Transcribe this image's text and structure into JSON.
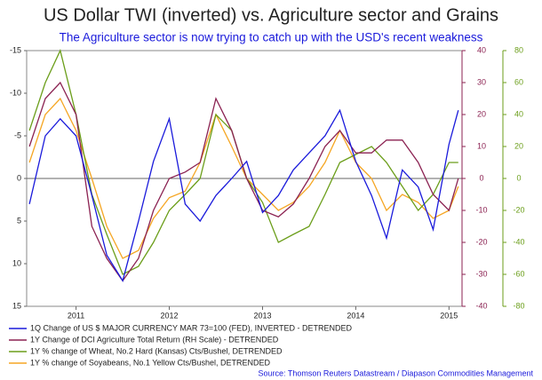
{
  "chart_data": {
    "type": "line",
    "title": "US Dollar TWI (inverted) vs. Agriculture sector and Grains",
    "subtitle": "The Agriculture sector is now trying to catch up with the USD's recent weakness",
    "source": "Source: Thomson Reuters Datastream / Diapason Commodities Management",
    "x": [
      2010.5,
      2010.67,
      2010.83,
      2011,
      2011.17,
      2011.33,
      2011.5,
      2011.67,
      2011.83,
      2012,
      2012.17,
      2012.33,
      2012.5,
      2012.67,
      2012.83,
      2013,
      2013.17,
      2013.33,
      2013.5,
      2013.67,
      2013.83,
      2014,
      2014.17,
      2014.33,
      2014.5,
      2014.67,
      2014.83,
      2015,
      2015.1
    ],
    "xlim": [
      2010.47,
      2015.14
    ],
    "xticks": [
      2011,
      2012,
      2013,
      2014,
      2015
    ],
    "ylim": [
      -15,
      15
    ],
    "y_inverted": true,
    "yticks": [
      -15,
      -10,
      -5,
      0,
      5,
      10,
      15
    ],
    "y2lim": [
      -40,
      40
    ],
    "y2ticks": [
      40,
      30,
      20,
      10,
      0,
      -10,
      -20,
      -30,
      -40
    ],
    "y2color": "#8b2252",
    "y3lim": [
      -80,
      80
    ],
    "y3ticks": [
      80,
      60,
      40,
      20,
      0,
      -20,
      -40,
      -60,
      -80
    ],
    "y3color": "#6b9e1a",
    "series": [
      {
        "name": "1Q Change of US $ MAJOR CURRENCY MAR 73=100 (FED), INVERTED - DETRENDED",
        "color": "#1a1adb",
        "axis": "y",
        "values": [
          3,
          -5,
          -7,
          -5,
          2,
          9,
          12,
          5,
          -2,
          -7,
          3,
          5,
          2,
          0,
          -2,
          4,
          2,
          -1,
          -3,
          -5,
          -8,
          -2,
          2,
          7,
          -1,
          1,
          6,
          -4,
          -8
        ]
      },
      {
        "name": "1Y Change of DCI Agriculture Total Return (RH Scale) - DETRENDED",
        "color": "#8b2252",
        "axis": "y2",
        "values": [
          10,
          25,
          30,
          20,
          -15,
          -25,
          -32,
          -25,
          -10,
          0,
          2,
          5,
          25,
          15,
          0,
          -10,
          -12,
          -8,
          0,
          10,
          15,
          8,
          8,
          12,
          12,
          5,
          -5,
          -10,
          0
        ]
      },
      {
        "name": "1Y % change of Wheat, No.2 Hard (Kansas) Cts/Bushel, DETRENDED",
        "color": "#6b9e1a",
        "axis": "y3",
        "values": [
          30,
          60,
          80,
          40,
          -10,
          -35,
          -60,
          -55,
          -40,
          -20,
          -10,
          0,
          40,
          30,
          0,
          -15,
          -40,
          -35,
          -30,
          -10,
          10,
          15,
          20,
          10,
          -5,
          -20,
          -10,
          10,
          10
        ]
      },
      {
        "name": "1Y % change of Soyabeans, No.1 Yellow Cts/Bushel, DETRENDED",
        "color": "#f5a623",
        "axis": "y3",
        "values": [
          10,
          40,
          50,
          30,
          0,
          -30,
          -50,
          -45,
          -25,
          -12,
          -8,
          10,
          40,
          20,
          0,
          -10,
          -20,
          -15,
          -5,
          10,
          30,
          10,
          0,
          -20,
          -10,
          -15,
          -25,
          -20,
          -5
        ]
      }
    ]
  }
}
